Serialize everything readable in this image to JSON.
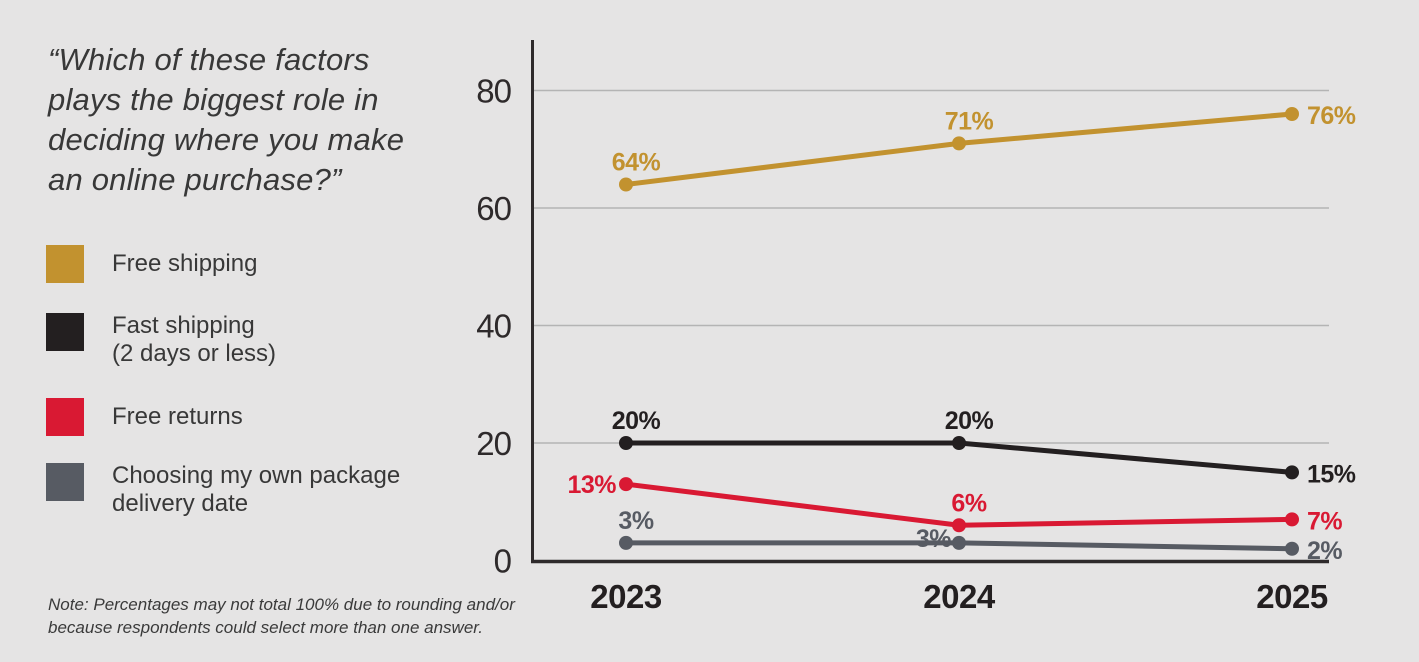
{
  "background_color": "#e5e4e4",
  "question": {
    "lines": [
      "“Which of these factors",
      "plays the biggest role in",
      "deciding where you make",
      "an online purchase?”"
    ]
  },
  "legend": {
    "items": [
      {
        "color": "#C2922F",
        "label_lines": [
          "Free shipping"
        ]
      },
      {
        "color": "#231F20",
        "label_lines": [
          "Fast shipping",
          "(2 days or less)"
        ]
      },
      {
        "color": "#D91933",
        "label_lines": [
          "Free returns"
        ]
      },
      {
        "color": "#575B63",
        "label_lines": [
          "Choosing my own package",
          "delivery date"
        ]
      }
    ]
  },
  "note": {
    "lines": [
      "Note: Percentages may not total 100% due to rounding and/or",
      "because respondents could select more than one answer."
    ]
  },
  "chart_data": {
    "type": "line",
    "title": "",
    "xlabel": "",
    "ylabel": "",
    "categories": [
      "2023",
      "2024",
      "2025"
    ],
    "y_ticks": [
      0,
      20,
      40,
      60,
      80
    ],
    "ylim": [
      0,
      88
    ],
    "grid": true,
    "legend_position": "left",
    "axis_color": "#2e2a2b",
    "gridline_color": "#b4b4b4",
    "series": [
      {
        "name": "Free shipping",
        "color": "#C2922F",
        "values": [
          64,
          71,
          76
        ],
        "data_labels": [
          "64%",
          "71%",
          "76%"
        ],
        "label_placements": [
          "above",
          "above",
          "right"
        ]
      },
      {
        "name": "Fast shipping (2 days or less)",
        "color": "#231F20",
        "values": [
          20,
          20,
          15
        ],
        "data_labels": [
          "20%",
          "20%",
          "15%"
        ],
        "label_placements": [
          "above",
          "above",
          "right"
        ]
      },
      {
        "name": "Free returns",
        "color": "#D91933",
        "values": [
          13,
          6,
          7
        ],
        "data_labels": [
          "13%",
          "6%",
          "7%"
        ],
        "label_placements": [
          "left",
          "above",
          "right"
        ]
      },
      {
        "name": "Choosing my own package delivery date",
        "color": "#575B63",
        "values": [
          3,
          3,
          2
        ],
        "data_labels": [
          "3%",
          "3%",
          "2%"
        ],
        "label_placements": [
          "above",
          "left-low",
          "right"
        ]
      }
    ]
  }
}
